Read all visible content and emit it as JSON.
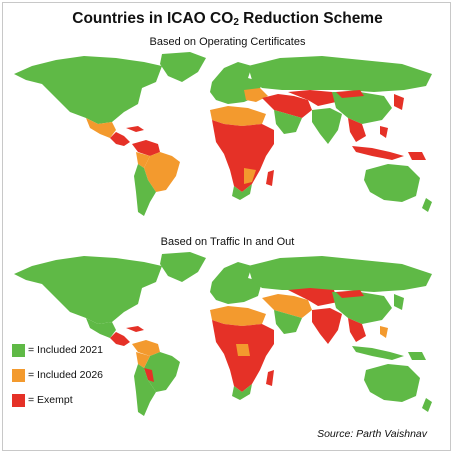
{
  "title": {
    "main": "Countries in ICAO CO",
    "subscript": "2",
    "suffix": " Reduction Scheme"
  },
  "maps": [
    {
      "subtitle": "Based on Operating Certificates"
    },
    {
      "subtitle": "Based on Traffic In and Out"
    }
  ],
  "legend": {
    "items": [
      {
        "label": "= Included 2021",
        "color": "#5fb946"
      },
      {
        "label": "= Included 2026",
        "color": "#f39a2e"
      },
      {
        "label": "= Exempt",
        "color": "#e53127"
      }
    ]
  },
  "source": "Source: Parth Vaishnav",
  "colors": {
    "included_2021": "#5fb946",
    "included_2026": "#f39a2e",
    "exempt": "#e53127"
  }
}
